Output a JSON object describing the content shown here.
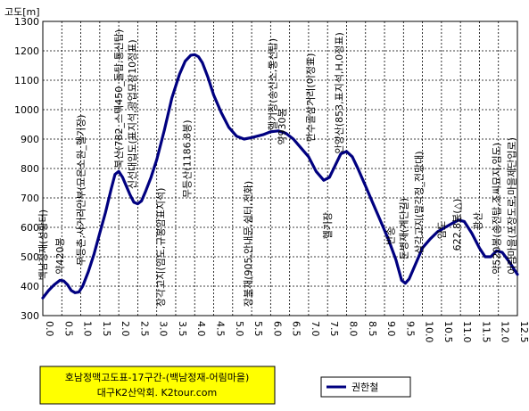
{
  "chart_data": {
    "type": "line",
    "ylabel": "고도[m]",
    "xlim": [
      0,
      12.5
    ],
    "ylim": [
      300,
      1300
    ],
    "x_ticks": [
      "0.0",
      "0.5",
      "1.0",
      "1.5",
      "2.0",
      "2.5",
      "3.0",
      "3.5",
      "4.0",
      "4.5",
      "5.0",
      "5.5",
      "6.0",
      "6.5",
      "7.0",
      "7.5",
      "8.0",
      "8.5",
      "9.0",
      "9.5",
      "10.0",
      "10.5",
      "11.0",
      "11.5",
      "12.0",
      "12.5"
    ],
    "y_ticks": [
      "300",
      "400",
      "500",
      "600",
      "700",
      "800",
      "900",
      "1000",
      "1100",
      "1200",
      "1300"
    ],
    "grid": true,
    "line_color": "#000080",
    "title_lines": [
      "호남정맥고도표-17구간-(백남정재-어림마을)",
      "대구K2산악회. K2tour.com"
    ],
    "title_bg": "#ffff00",
    "legend": {
      "placement": "bottom-right",
      "label": "권한철"
    },
    "series": [
      {
        "name": "권한철",
        "x": [
          0.0,
          0.15,
          0.3,
          0.45,
          0.55,
          0.65,
          0.75,
          0.85,
          0.95,
          1.05,
          1.2,
          1.35,
          1.5,
          1.65,
          1.8,
          1.9,
          2.0,
          2.1,
          2.2,
          2.3,
          2.4,
          2.5,
          2.6,
          2.7,
          2.85,
          3.0,
          3.2,
          3.4,
          3.6,
          3.75,
          3.9,
          4.0,
          4.1,
          4.2,
          4.35,
          4.5,
          4.7,
          4.9,
          5.1,
          5.3,
          5.5,
          5.65,
          5.8,
          6.0,
          6.2,
          6.4,
          6.6,
          6.8,
          7.0,
          7.2,
          7.4,
          7.55,
          7.7,
          7.85,
          8.0,
          8.15,
          8.3,
          8.5,
          8.7,
          8.9,
          9.1,
          9.3,
          9.45,
          9.55,
          9.65,
          9.8,
          10.0,
          10.2,
          10.4,
          10.6,
          10.8,
          10.95,
          11.1,
          11.3,
          11.5,
          11.65,
          11.8,
          11.95,
          12.1,
          12.3,
          12.5
        ],
        "y": [
          360,
          385,
          405,
          420,
          418,
          405,
          385,
          378,
          380,
          400,
          450,
          510,
          580,
          650,
          730,
          780,
          790,
          770,
          740,
          710,
          685,
          680,
          690,
          720,
          770,
          830,
          930,
          1040,
          1120,
          1165,
          1185,
          1187,
          1180,
          1160,
          1110,
          1050,
          990,
          940,
          910,
          900,
          905,
          910,
          915,
          925,
          928,
          920,
          900,
          870,
          840,
          790,
          760,
          770,
          810,
          850,
          858,
          840,
          800,
          740,
          680,
          620,
          560,
          490,
          420,
          410,
          425,
          470,
          530,
          560,
          585,
          600,
          615,
          625,
          620,
          580,
          530,
          500,
          500,
          520,
          515,
          480,
          440
        ]
      }
    ],
    "annotations": [
      {
        "x": 0.0,
        "y": 420,
        "text": "백남정재(성황터)"
      },
      {
        "x": 0.45,
        "y": 440,
        "text": "약420봉"
      },
      {
        "x": 1.0,
        "y": 470,
        "text": "무등촌,사거리안부(묘은소원_헬기장)"
      },
      {
        "x": 2.0,
        "y": 800,
        "text": "북산(782_스텍450_돌탑,통신탑)"
      },
      {
        "x": 2.35,
        "y": 730,
        "text": "신선대입도(표지석,광업묘장10정표)"
      },
      {
        "x": 3.1,
        "y": 330,
        "text": "장각고지(임도,규봉암표지석)"
      },
      {
        "x": 3.8,
        "y": 700,
        "text": "무등산(1186.8봉)"
      },
      {
        "x": 5.4,
        "y": 330,
        "text": "장불재(905,안내문,쉼터,전화)"
      },
      {
        "x": 6.05,
        "y": 930,
        "text": "헬기장(송신소,통신탑)"
      },
      {
        "x": 6.3,
        "y": 880,
        "text": "약930봉"
      },
      {
        "x": 7.05,
        "y": 890,
        "text": "만수골삼거리(이정표)"
      },
      {
        "x": 7.8,
        "y": 850,
        "text": "안양산(853,표지석,H,0정표)"
      },
      {
        "x": 7.5,
        "y": 560,
        "text": "헬기장"
      },
      {
        "x": 9.15,
        "y": 540,
        "text": "반송"
      },
      {
        "x": 9.5,
        "y": 490,
        "text": "둔병재(계단길)"
      },
      {
        "x": 9.9,
        "y": 510,
        "text": "삼각고지(말각정_전망대)"
      },
      {
        "x": 10.5,
        "y": 560,
        "text": "임도"
      },
      {
        "x": 10.9,
        "y": 520,
        "text": "622.8봉(△)"
      },
      {
        "x": 11.45,
        "y": 590,
        "text": "광산"
      },
      {
        "x": 11.95,
        "y": 440,
        "text": "약520봉(송전탑,조씨묘지,임도)"
      },
      {
        "x": 12.35,
        "y": 440,
        "text": "어림마을(포장도로,마을제단입로)"
      }
    ]
  }
}
